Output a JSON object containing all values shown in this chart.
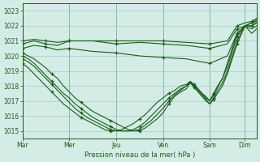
{
  "title": "",
  "xlabel": "Pression niveau de la mer( hPa )",
  "bg_color": "#d4ece6",
  "plot_bg_color": "#d4ece6",
  "grid_color": "#9ec8b8",
  "line_color": "#1a5c1a",
  "ylim": [
    1014.5,
    1023.5
  ],
  "yticks": [
    1015,
    1016,
    1017,
    1018,
    1019,
    1020,
    1021,
    1022,
    1023
  ],
  "xlim": [
    0,
    240
  ],
  "day_x": [
    0,
    48,
    96,
    144,
    192,
    228
  ],
  "day_labels": [
    "Mar",
    "Mer",
    "Jeu",
    "Ven",
    "Sam",
    "Dim"
  ],
  "series": {
    "flat1": [
      [
        0,
        1021.0
      ],
      [
        12,
        1021.1
      ],
      [
        24,
        1021.0
      ],
      [
        36,
        1020.9
      ],
      [
        48,
        1021.0
      ],
      [
        72,
        1021.0
      ],
      [
        96,
        1021.0
      ],
      [
        120,
        1021.0
      ],
      [
        144,
        1021.0
      ],
      [
        168,
        1020.9
      ],
      [
        192,
        1020.8
      ],
      [
        210,
        1021.0
      ],
      [
        220,
        1022.0
      ],
      [
        228,
        1022.2
      ],
      [
        235,
        1022.3
      ],
      [
        240,
        1022.5
      ]
    ],
    "flat2": [
      [
        0,
        1020.8
      ],
      [
        12,
        1021.0
      ],
      [
        24,
        1020.8
      ],
      [
        36,
        1020.7
      ],
      [
        48,
        1021.0
      ],
      [
        72,
        1021.0
      ],
      [
        96,
        1020.8
      ],
      [
        120,
        1020.9
      ],
      [
        144,
        1020.8
      ],
      [
        168,
        1020.7
      ],
      [
        192,
        1020.5
      ],
      [
        210,
        1020.8
      ],
      [
        220,
        1021.8
      ],
      [
        228,
        1022.0
      ],
      [
        235,
        1022.2
      ],
      [
        240,
        1022.4
      ]
    ],
    "flat3": [
      [
        0,
        1020.5
      ],
      [
        12,
        1020.7
      ],
      [
        24,
        1020.6
      ],
      [
        36,
        1020.4
      ],
      [
        48,
        1020.5
      ],
      [
        72,
        1020.3
      ],
      [
        96,
        1020.2
      ],
      [
        120,
        1020.0
      ],
      [
        144,
        1019.9
      ],
      [
        168,
        1019.8
      ],
      [
        192,
        1019.5
      ],
      [
        210,
        1020.0
      ],
      [
        220,
        1021.5
      ],
      [
        228,
        1022.0
      ],
      [
        235,
        1022.0
      ],
      [
        240,
        1022.2
      ]
    ],
    "curve1": [
      [
        0,
        1020.2
      ],
      [
        6,
        1020.0
      ],
      [
        12,
        1019.8
      ],
      [
        18,
        1019.5
      ],
      [
        24,
        1019.2
      ],
      [
        30,
        1018.8
      ],
      [
        36,
        1018.5
      ],
      [
        42,
        1018.0
      ],
      [
        48,
        1017.6
      ],
      [
        54,
        1017.2
      ],
      [
        60,
        1016.9
      ],
      [
        66,
        1016.6
      ],
      [
        72,
        1016.3
      ],
      [
        78,
        1016.1
      ],
      [
        84,
        1015.9
      ],
      [
        90,
        1015.7
      ],
      [
        96,
        1015.5
      ],
      [
        102,
        1015.3
      ],
      [
        108,
        1015.1
      ],
      [
        114,
        1015.0
      ],
      [
        120,
        1015.0
      ],
      [
        126,
        1015.2
      ],
      [
        132,
        1015.5
      ],
      [
        138,
        1015.8
      ],
      [
        144,
        1016.2
      ],
      [
        150,
        1016.8
      ],
      [
        156,
        1017.3
      ],
      [
        162,
        1017.6
      ],
      [
        168,
        1017.8
      ],
      [
        172,
        1018.2
      ],
      [
        176,
        1018.0
      ],
      [
        180,
        1017.8
      ],
      [
        184,
        1017.5
      ],
      [
        188,
        1017.3
      ],
      [
        192,
        1017.0
      ],
      [
        196,
        1017.5
      ],
      [
        200,
        1018.0
      ],
      [
        205,
        1018.5
      ],
      [
        210,
        1019.5
      ],
      [
        215,
        1020.5
      ],
      [
        220,
        1021.5
      ],
      [
        228,
        1022.0
      ],
      [
        235,
        1022.2
      ],
      [
        240,
        1022.3
      ]
    ],
    "curve2": [
      [
        0,
        1020.0
      ],
      [
        6,
        1019.8
      ],
      [
        12,
        1019.5
      ],
      [
        18,
        1019.1
      ],
      [
        24,
        1018.7
      ],
      [
        30,
        1018.3
      ],
      [
        36,
        1017.9
      ],
      [
        42,
        1017.5
      ],
      [
        48,
        1017.2
      ],
      [
        54,
        1016.8
      ],
      [
        60,
        1016.5
      ],
      [
        66,
        1016.2
      ],
      [
        72,
        1015.9
      ],
      [
        78,
        1015.7
      ],
      [
        84,
        1015.5
      ],
      [
        90,
        1015.3
      ],
      [
        96,
        1015.1
      ],
      [
        102,
        1015.0
      ],
      [
        108,
        1015.0
      ],
      [
        114,
        1015.0
      ],
      [
        120,
        1015.1
      ],
      [
        126,
        1015.4
      ],
      [
        132,
        1015.7
      ],
      [
        138,
        1016.1
      ],
      [
        144,
        1016.5
      ],
      [
        150,
        1017.0
      ],
      [
        156,
        1017.4
      ],
      [
        162,
        1017.7
      ],
      [
        168,
        1018.0
      ],
      [
        172,
        1018.3
      ],
      [
        176,
        1018.1
      ],
      [
        180,
        1017.8
      ],
      [
        184,
        1017.5
      ],
      [
        188,
        1017.2
      ],
      [
        192,
        1017.0
      ],
      [
        196,
        1017.4
      ],
      [
        200,
        1017.9
      ],
      [
        205,
        1018.5
      ],
      [
        210,
        1019.3
      ],
      [
        215,
        1020.3
      ],
      [
        220,
        1021.3
      ],
      [
        228,
        1022.0
      ],
      [
        235,
        1022.0
      ],
      [
        240,
        1022.2
      ]
    ],
    "curve3": [
      [
        0,
        1019.8
      ],
      [
        6,
        1019.6
      ],
      [
        12,
        1019.3
      ],
      [
        18,
        1018.9
      ],
      [
        24,
        1018.5
      ],
      [
        30,
        1018.1
      ],
      [
        36,
        1017.7
      ],
      [
        42,
        1017.3
      ],
      [
        48,
        1016.9
      ],
      [
        54,
        1016.5
      ],
      [
        60,
        1016.2
      ],
      [
        66,
        1015.9
      ],
      [
        72,
        1015.7
      ],
      [
        78,
        1015.5
      ],
      [
        84,
        1015.3
      ],
      [
        90,
        1015.1
      ],
      [
        96,
        1015.0
      ],
      [
        102,
        1015.0
      ],
      [
        108,
        1015.0
      ],
      [
        114,
        1015.1
      ],
      [
        120,
        1015.3
      ],
      [
        126,
        1015.6
      ],
      [
        132,
        1016.0
      ],
      [
        138,
        1016.4
      ],
      [
        144,
        1016.8
      ],
      [
        150,
        1017.2
      ],
      [
        156,
        1017.5
      ],
      [
        162,
        1017.8
      ],
      [
        168,
        1018.0
      ],
      [
        172,
        1018.2
      ],
      [
        176,
        1017.9
      ],
      [
        180,
        1017.6
      ],
      [
        184,
        1017.3
      ],
      [
        188,
        1017.0
      ],
      [
        192,
        1016.8
      ],
      [
        196,
        1017.2
      ],
      [
        200,
        1017.7
      ],
      [
        205,
        1018.2
      ],
      [
        210,
        1019.0
      ],
      [
        215,
        1020.0
      ],
      [
        220,
        1021.0
      ],
      [
        228,
        1022.0
      ],
      [
        235,
        1021.8
      ],
      [
        240,
        1022.0
      ]
    ],
    "curve4": [
      [
        0,
        1019.5
      ],
      [
        6,
        1019.2
      ],
      [
        12,
        1018.8
      ],
      [
        18,
        1018.4
      ],
      [
        24,
        1018.0
      ],
      [
        30,
        1017.6
      ],
      [
        36,
        1017.2
      ],
      [
        42,
        1016.8
      ],
      [
        48,
        1016.5
      ],
      [
        54,
        1016.2
      ],
      [
        60,
        1015.9
      ],
      [
        66,
        1015.7
      ],
      [
        72,
        1015.5
      ],
      [
        78,
        1015.3
      ],
      [
        84,
        1015.1
      ],
      [
        90,
        1015.0
      ],
      [
        96,
        1015.0
      ],
      [
        102,
        1015.1
      ],
      [
        108,
        1015.3
      ],
      [
        114,
        1015.5
      ],
      [
        120,
        1015.8
      ],
      [
        126,
        1016.1
      ],
      [
        132,
        1016.5
      ],
      [
        138,
        1016.9
      ],
      [
        144,
        1017.2
      ],
      [
        150,
        1017.5
      ],
      [
        156,
        1017.7
      ],
      [
        162,
        1018.0
      ],
      [
        168,
        1018.1
      ],
      [
        172,
        1018.3
      ],
      [
        176,
        1018.0
      ],
      [
        180,
        1017.7
      ],
      [
        184,
        1017.4
      ],
      [
        188,
        1017.1
      ],
      [
        192,
        1016.8
      ],
      [
        196,
        1017.1
      ],
      [
        200,
        1017.5
      ],
      [
        205,
        1018.0
      ],
      [
        210,
        1018.8
      ],
      [
        215,
        1019.8
      ],
      [
        220,
        1020.8
      ],
      [
        228,
        1022.0
      ],
      [
        235,
        1021.5
      ],
      [
        240,
        1021.8
      ]
    ]
  }
}
